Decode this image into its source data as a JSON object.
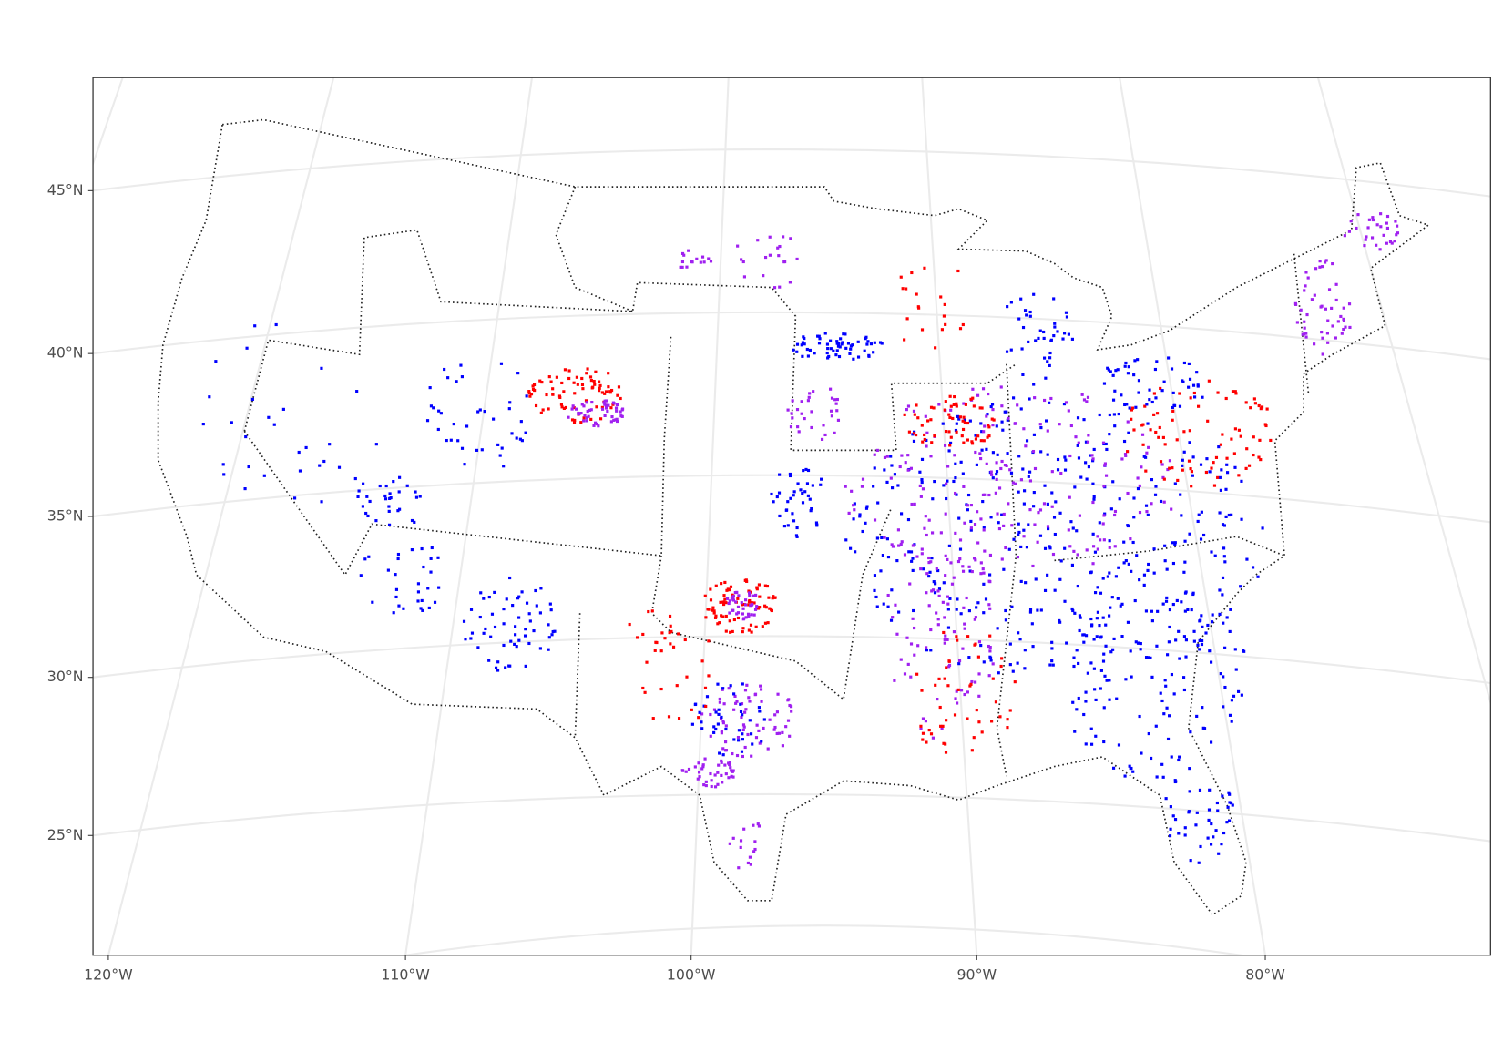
{
  "map": {
    "lat_labels": [
      "45°N",
      "40°N",
      "35°N",
      "30°N",
      "25°N"
    ],
    "lon_labels": [
      "120°W",
      "110°W",
      "100°W",
      "90°W",
      "80°W"
    ]
  }
}
